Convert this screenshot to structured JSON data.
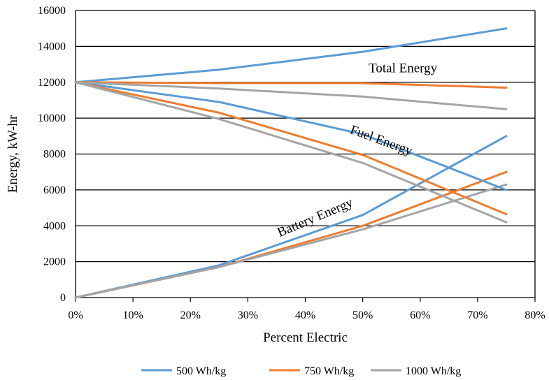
{
  "chart_data": {
    "type": "line",
    "title": "",
    "xlabel": "Percent Electric",
    "ylabel": "Energy, kW-hr",
    "xlim": [
      0,
      0.8
    ],
    "ylim": [
      0,
      16000
    ],
    "x_ticks": [
      {
        "value": 0.0,
        "label": "0%"
      },
      {
        "value": 0.1,
        "label": "10%"
      },
      {
        "value": 0.2,
        "label": "20%"
      },
      {
        "value": 0.3,
        "label": "30%"
      },
      {
        "value": 0.4,
        "label": "40%"
      },
      {
        "value": 0.5,
        "label": "50%"
      },
      {
        "value": 0.6,
        "label": "60%"
      },
      {
        "value": 0.7,
        "label": "70%"
      },
      {
        "value": 0.8,
        "label": "80%"
      }
    ],
    "y_ticks": [
      {
        "value": 0,
        "label": "0"
      },
      {
        "value": 2000,
        "label": "2000"
      },
      {
        "value": 4000,
        "label": "4000"
      },
      {
        "value": 6000,
        "label": "6000"
      },
      {
        "value": 8000,
        "label": "8000"
      },
      {
        "value": 10000,
        "label": "10000"
      },
      {
        "value": 12000,
        "label": "12000"
      },
      {
        "value": 14000,
        "label": "14000"
      },
      {
        "value": 16000,
        "label": "16000"
      }
    ],
    "grid": "horizontal",
    "legend_position": "bottom",
    "x": [
      0,
      0.25,
      0.5,
      0.75
    ],
    "series": [
      {
        "name": "500 Wh/kg",
        "color": "#5B9BD5",
        "group": "Total Energy",
        "values": [
          12000,
          12700,
          13700,
          15000
        ]
      },
      {
        "name": "750 Wh/kg",
        "color": "#ED7D31",
        "group": "Total Energy",
        "values": [
          12000,
          11950,
          11950,
          11700
        ]
      },
      {
        "name": "1000 Wh/kg",
        "color": "#A5A5A5",
        "group": "Total Energy",
        "values": [
          12000,
          11650,
          11200,
          10500
        ]
      },
      {
        "name": "500 Wh/kg",
        "color": "#5B9BD5",
        "group": "Fuel Energy",
        "values": [
          12000,
          10900,
          9100,
          6000
        ]
      },
      {
        "name": "750 Wh/kg",
        "color": "#ED7D31",
        "group": "Fuel Energy",
        "values": [
          12000,
          10300,
          7950,
          4650
        ]
      },
      {
        "name": "1000 Wh/kg",
        "color": "#A5A5A5",
        "group": "Fuel Energy",
        "values": [
          12000,
          9950,
          7500,
          4200
        ]
      },
      {
        "name": "500 Wh/kg",
        "color": "#5B9BD5",
        "group": "Battery Energy",
        "values": [
          0,
          1800,
          4600,
          9000
        ]
      },
      {
        "name": "750 Wh/kg",
        "color": "#ED7D31",
        "group": "Battery Energy",
        "values": [
          0,
          1700,
          4000,
          7000
        ]
      },
      {
        "name": "1000 Wh/kg",
        "color": "#A5A5A5",
        "group": "Battery Energy",
        "values": [
          0,
          1700,
          3800,
          6300
        ]
      }
    ],
    "legend": [
      {
        "label": "500 Wh/kg",
        "color": "#5B9BD5"
      },
      {
        "label": "750 Wh/kg",
        "color": "#ED7D31"
      },
      {
        "label": "1000 Wh/kg",
        "color": "#A5A5A5"
      }
    ],
    "annotations": [
      {
        "text": "Total Energy",
        "x": 0.57,
        "y": 12550,
        "rotate": 0
      },
      {
        "text": "Fuel Energy",
        "x": 0.53,
        "y": 8550,
        "rotate": 20
      },
      {
        "text": "Battery Energy",
        "x": 0.42,
        "y": 4250,
        "rotate": -23
      }
    ]
  }
}
